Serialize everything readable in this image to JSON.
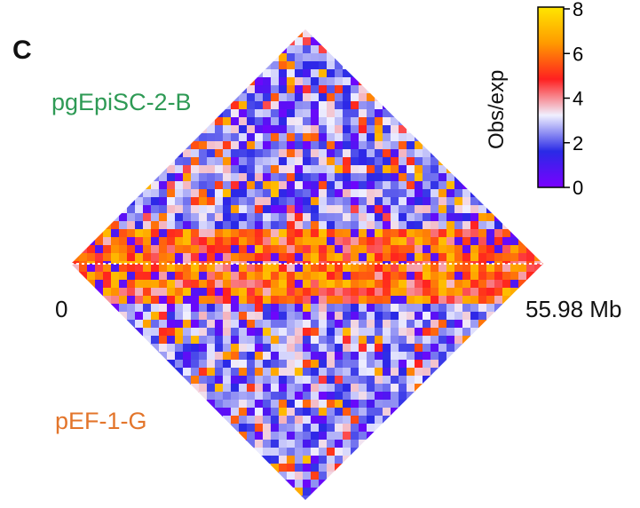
{
  "panel_letter": "C",
  "colors": {
    "top_label": "#2e9a55",
    "bottom_label": "#e3752b",
    "colormap": [
      "#7a00ff",
      "#2a2ae6",
      "#f0f0ff",
      "#ff2020",
      "#ff9a00",
      "#ffe600"
    ]
  },
  "chart_data": {
    "type": "heatmap",
    "title": "",
    "upper_triangle_label": "pgEpiSC-2-B",
    "lower_triangle_label": "pEF-1-G",
    "x_start_label": "0",
    "x_end_label": "55.98 Mb",
    "x_range_mb": [
      0,
      55.98
    ],
    "colorbar": {
      "label": "Obs/exp",
      "range": [
        0,
        8
      ],
      "ticks": [
        "0",
        "2",
        "4",
        "6",
        "8"
      ],
      "tick_values": [
        0,
        2,
        4,
        6,
        8
      ]
    }
  }
}
